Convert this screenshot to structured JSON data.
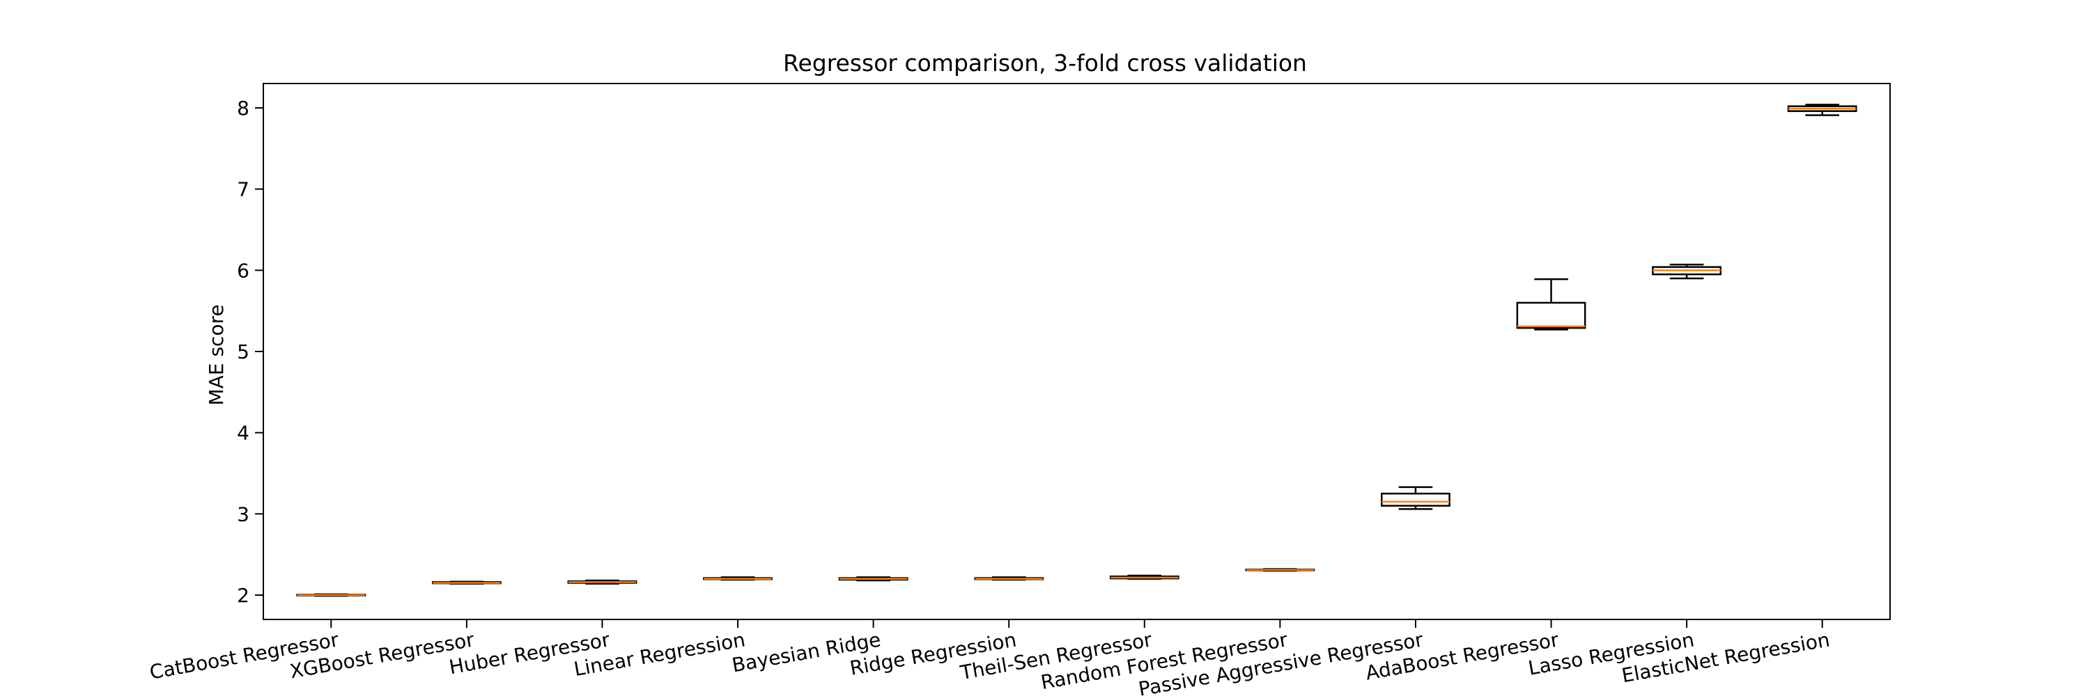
{
  "chart_data": {
    "type": "boxplot",
    "title": "Regressor comparison, 3-fold cross validation",
    "xlabel": "",
    "ylabel": "MAE score",
    "ylim": [
      1.7,
      8.3
    ],
    "yticks": [
      2,
      3,
      4,
      5,
      6,
      7,
      8
    ],
    "grid": false,
    "colors": {
      "median": "#ff7f0e",
      "box": "#000000",
      "background": "#ffffff"
    },
    "categories": [
      "CatBoost Regressor",
      "XGBoost Regressor",
      "Huber Regressor",
      "Linear Regression",
      "Bayesian Ridge",
      "Ridge Regression",
      "Theil-Sen Regressor",
      "Random Forest Regressor",
      "Passive Aggressive Regressor",
      "AdaBoost Regressor",
      "Lasso Regression",
      "ElasticNet Regression"
    ],
    "boxes": [
      {
        "min": 1.99,
        "q1": 1.995,
        "median": 2.0,
        "q3": 2.005,
        "max": 2.01
      },
      {
        "min": 2.14,
        "q1": 2.145,
        "median": 2.15,
        "q3": 2.16,
        "max": 2.165
      },
      {
        "min": 2.14,
        "q1": 2.15,
        "median": 2.16,
        "q3": 2.17,
        "max": 2.18
      },
      {
        "min": 2.19,
        "q1": 2.195,
        "median": 2.2,
        "q3": 2.21,
        "max": 2.22
      },
      {
        "min": 2.18,
        "q1": 2.19,
        "median": 2.2,
        "q3": 2.21,
        "max": 2.22
      },
      {
        "min": 2.19,
        "q1": 2.195,
        "median": 2.2,
        "q3": 2.21,
        "max": 2.22
      },
      {
        "min": 2.2,
        "q1": 2.205,
        "median": 2.215,
        "q3": 2.23,
        "max": 2.24
      },
      {
        "min": 2.3,
        "q1": 2.305,
        "median": 2.31,
        "q3": 2.315,
        "max": 2.32
      },
      {
        "min": 3.06,
        "q1": 3.1,
        "median": 3.15,
        "q3": 3.25,
        "max": 3.33
      },
      {
        "min": 5.27,
        "q1": 5.29,
        "median": 5.31,
        "q3": 5.6,
        "max": 5.89
      },
      {
        "min": 5.9,
        "q1": 5.95,
        "median": 6.0,
        "q3": 6.04,
        "max": 6.07
      },
      {
        "min": 7.91,
        "q1": 7.96,
        "median": 7.99,
        "q3": 8.02,
        "max": 8.04
      }
    ]
  }
}
